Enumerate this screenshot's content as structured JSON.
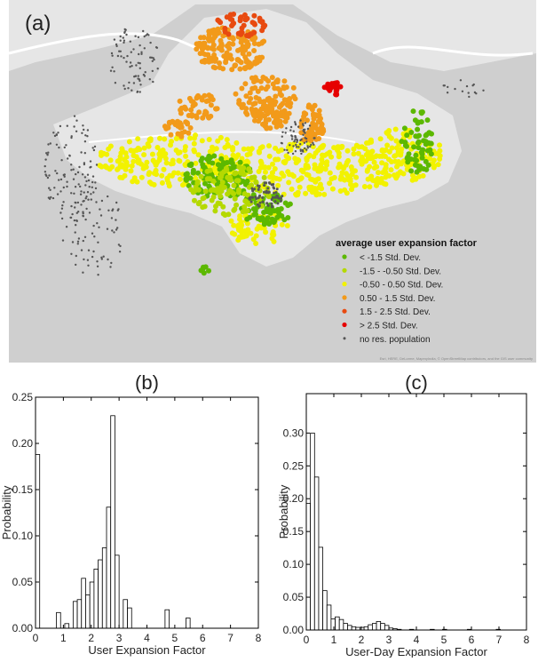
{
  "map": {
    "panel_label": "(a)",
    "legend_title": "average user expansion factor",
    "legend": [
      {
        "label": "< -1.5 Std. Dev.",
        "color": "#5cb800"
      },
      {
        "label": "-1.5 - -0.50 Std. Dev.",
        "color": "#b5d900"
      },
      {
        "label": "-0.50 - 0.50 Std. Dev.",
        "color": "#f2f200"
      },
      {
        "label": "0.50 - 1.5 Std. Dev.",
        "color": "#f29a1a"
      },
      {
        "label": "1.5 - 2.5 Std. Dev.",
        "color": "#e84a10"
      },
      {
        "label": "> 2.5 Std. Dev.",
        "color": "#e60000"
      },
      {
        "label": "no res. population",
        "color": "#555555"
      }
    ],
    "attribution": "Esri, HERE, DeLorme, MapmyIndia, © OpenStreetMap contributors, and the GIS user community",
    "land_color": "#e6e6e6",
    "water_color": "#cfcfcf"
  },
  "chart_data": [
    {
      "type": "bar",
      "panel_label": "(b)",
      "xlabel": "User Expansion Factor",
      "ylabel": "Probability",
      "xlim": [
        0,
        8
      ],
      "ylim": [
        0,
        0.25
      ],
      "xticks": [
        "0",
        "1",
        "2",
        "3",
        "4",
        "5",
        "6",
        "7",
        "8"
      ],
      "yticks": [
        "0.00",
        "0.05",
        "0.10",
        "0.15",
        "0.20",
        "0.25"
      ],
      "bin_width": 0.15,
      "bins": [
        {
          "x": 0.0,
          "y": 0.188
        },
        {
          "x": 0.75,
          "y": 0.017
        },
        {
          "x": 1.05,
          "y": 0.005
        },
        {
          "x": 1.35,
          "y": 0.029
        },
        {
          "x": 1.5,
          "y": 0.031
        },
        {
          "x": 1.65,
          "y": 0.054
        },
        {
          "x": 1.8,
          "y": 0.036
        },
        {
          "x": 1.95,
          "y": 0.05
        },
        {
          "x": 2.1,
          "y": 0.064
        },
        {
          "x": 2.25,
          "y": 0.074
        },
        {
          "x": 2.4,
          "y": 0.087
        },
        {
          "x": 2.55,
          "y": 0.131
        },
        {
          "x": 2.7,
          "y": 0.23
        },
        {
          "x": 2.85,
          "y": 0.079
        },
        {
          "x": 3.15,
          "y": 0.031
        },
        {
          "x": 3.3,
          "y": 0.022
        },
        {
          "x": 4.65,
          "y": 0.02
        },
        {
          "x": 5.4,
          "y": 0.011
        }
      ]
    },
    {
      "type": "bar",
      "panel_label": "(c)",
      "xlabel": "User-Day Expansion Factor",
      "ylabel": "Probability",
      "xlim": [
        0,
        8
      ],
      "ylim": [
        0,
        0.36
      ],
      "xticks": [
        "0",
        "1",
        "2",
        "3",
        "4",
        "5",
        "6",
        "7",
        "8"
      ],
      "yticks": [
        "0.00",
        "0.05",
        "0.10",
        "0.15",
        "0.20",
        "0.25",
        "0.30"
      ],
      "bin_width": 0.15,
      "bins": [
        {
          "x": 0.0,
          "y": 0.193
        },
        {
          "x": 0.15,
          "y": 0.3
        },
        {
          "x": 0.3,
          "y": 0.233
        },
        {
          "x": 0.45,
          "y": 0.126
        },
        {
          "x": 0.6,
          "y": 0.06
        },
        {
          "x": 0.75,
          "y": 0.038
        },
        {
          "x": 0.9,
          "y": 0.017
        },
        {
          "x": 1.05,
          "y": 0.02
        },
        {
          "x": 1.2,
          "y": 0.016
        },
        {
          "x": 1.35,
          "y": 0.01
        },
        {
          "x": 1.5,
          "y": 0.007
        },
        {
          "x": 1.65,
          "y": 0.005
        },
        {
          "x": 1.8,
          "y": 0.004
        },
        {
          "x": 1.95,
          "y": 0.004
        },
        {
          "x": 2.1,
          "y": 0.005
        },
        {
          "x": 2.25,
          "y": 0.008
        },
        {
          "x": 2.4,
          "y": 0.01
        },
        {
          "x": 2.55,
          "y": 0.013
        },
        {
          "x": 2.7,
          "y": 0.01
        },
        {
          "x": 2.85,
          "y": 0.007
        },
        {
          "x": 3.0,
          "y": 0.003
        },
        {
          "x": 3.15,
          "y": 0.002
        },
        {
          "x": 3.3,
          "y": 0.001
        },
        {
          "x": 3.75,
          "y": 0.001
        },
        {
          "x": 4.5,
          "y": 0.001
        },
        {
          "x": 4.95,
          "y": 0.001
        },
        {
          "x": 5.85,
          "y": 0.001
        },
        {
          "x": 6.9,
          "y": 0.001
        }
      ]
    }
  ]
}
